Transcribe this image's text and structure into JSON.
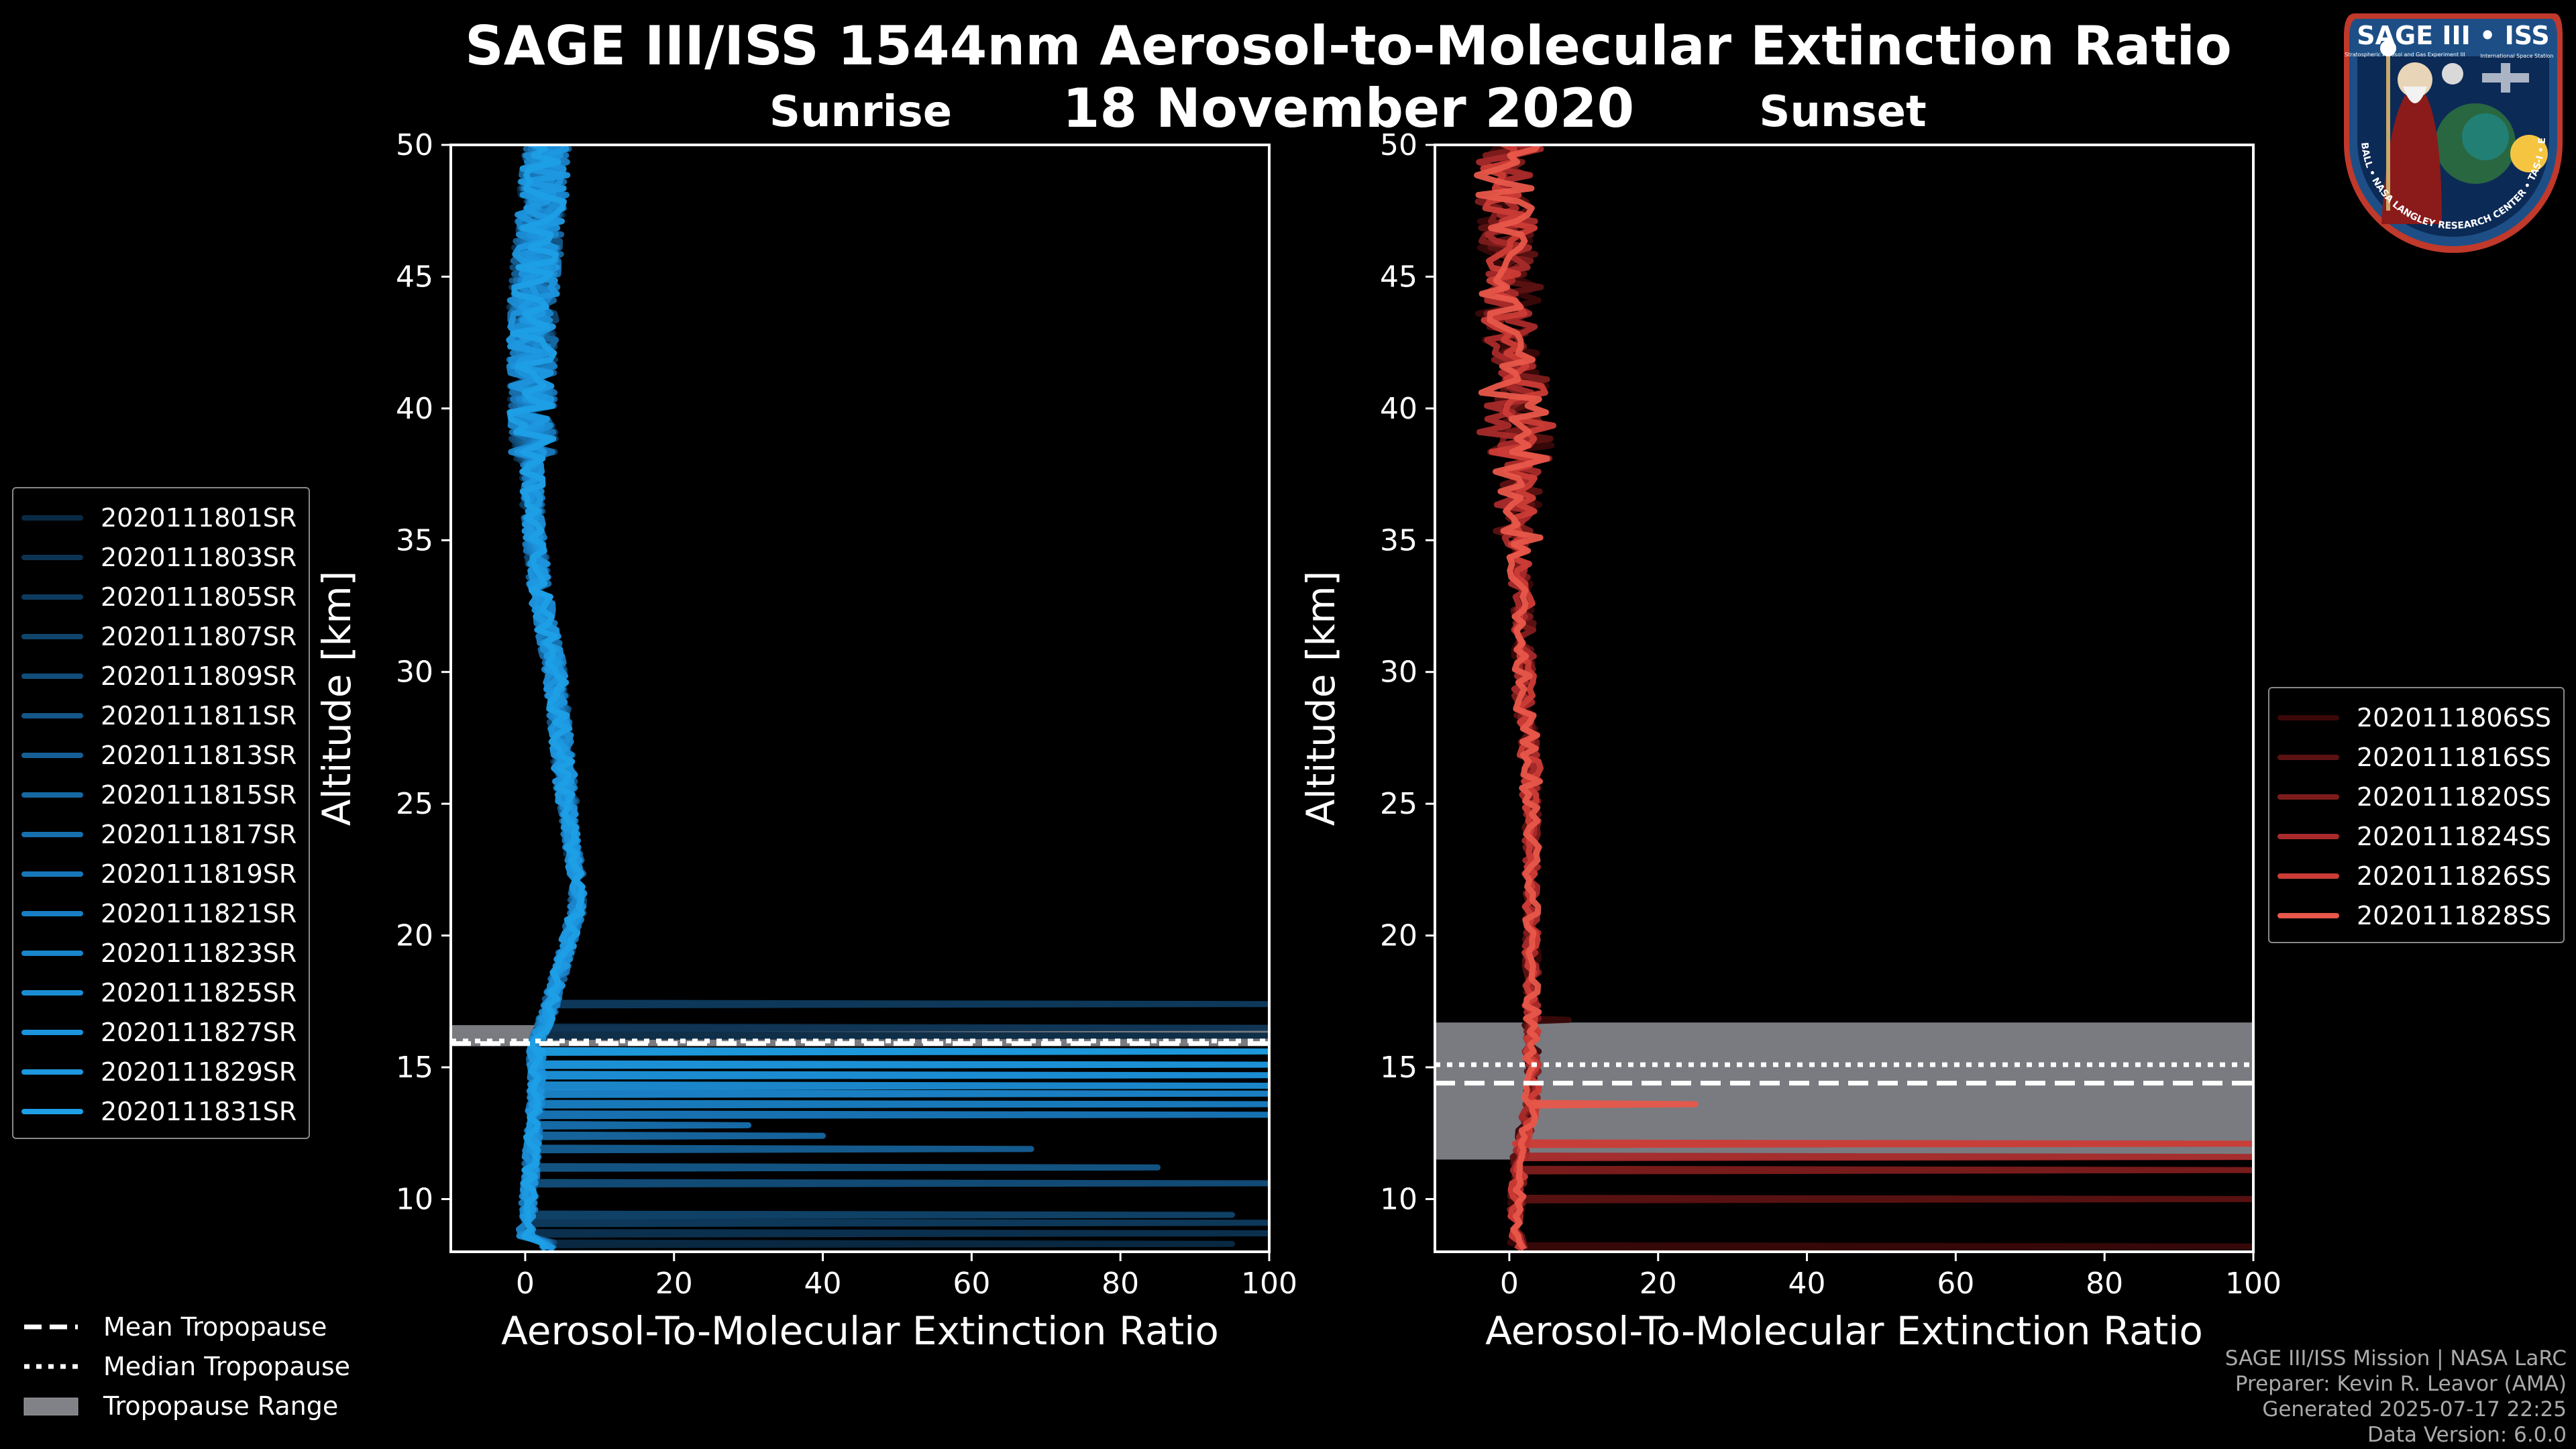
{
  "title": {
    "main": "SAGE III/ISS 1544nm Aerosol-to-Molecular Extinction Ratio",
    "date": "18 November 2020"
  },
  "panels": [
    {
      "id": "sunrise",
      "subtitle": "Sunrise"
    },
    {
      "id": "sunset",
      "subtitle": "Sunset"
    }
  ],
  "chart_data": [
    {
      "type": "line",
      "panel": "Sunrise",
      "title": "Sunrise",
      "xlabel": "Aerosol-To-Molecular Extinction Ratio",
      "ylabel": "Altitude [km]",
      "xlim": [
        -10,
        100
      ],
      "ylim": [
        8,
        50
      ],
      "xticks": [
        0,
        20,
        40,
        60,
        80,
        100
      ],
      "yticks": [
        10,
        15,
        20,
        25,
        30,
        35,
        40,
        45,
        50
      ],
      "series_names": [
        "2020111801SR",
        "2020111803SR",
        "2020111805SR",
        "2020111807SR",
        "2020111809SR",
        "2020111811SR",
        "2020111813SR",
        "2020111815SR",
        "2020111817SR",
        "2020111819SR",
        "2020111821SR",
        "2020111823SR",
        "2020111825SR",
        "2020111827SR",
        "2020111829SR",
        "2020111831SR"
      ],
      "series_colors": [
        "#0a2a44",
        "#0c3352",
        "#0e3b5e",
        "#10456c",
        "#124e7a",
        "#145788",
        "#155f95",
        "#1668a2",
        "#1770ae",
        "#1877ba",
        "#197fc4",
        "#1a86cc",
        "#1b8dd4",
        "#1c93dc",
        "#1d98e0",
        "#1e9fe6"
      ],
      "tropopause": {
        "mean": 15.9,
        "median": 16.0,
        "range": [
          15.8,
          16.6
        ]
      },
      "mean_profile": [
        [
          0,
          8.5
        ],
        [
          0.5,
          10
        ],
        [
          1,
          12
        ],
        [
          1.5,
          14
        ],
        [
          1.5,
          16
        ],
        [
          3,
          17
        ],
        [
          5,
          19
        ],
        [
          7,
          21
        ],
        [
          7,
          22
        ],
        [
          6,
          24
        ],
        [
          5,
          27
        ],
        [
          4,
          30
        ],
        [
          2,
          33
        ],
        [
          1,
          36
        ],
        [
          1,
          40
        ],
        [
          1,
          44
        ],
        [
          2,
          47
        ],
        [
          3,
          50
        ]
      ],
      "excursions": [
        [
          8.3,
          95
        ],
        [
          8.7,
          100
        ],
        [
          9.1,
          100
        ],
        [
          9.4,
          95
        ],
        [
          10.6,
          100
        ],
        [
          11.2,
          85
        ],
        [
          11.9,
          68
        ],
        [
          12.4,
          40
        ],
        [
          12.8,
          30
        ],
        [
          13.2,
          100
        ],
        [
          13.6,
          100
        ],
        [
          14.0,
          100
        ],
        [
          14.3,
          100
        ],
        [
          14.7,
          100
        ],
        [
          15.1,
          100
        ],
        [
          15.6,
          100
        ],
        [
          16.2,
          100
        ],
        [
          16.5,
          100
        ],
        [
          17.4,
          100
        ]
      ]
    },
    {
      "type": "line",
      "panel": "Sunset",
      "title": "Sunset",
      "xlabel": "Aerosol-To-Molecular Extinction Ratio",
      "ylabel": "Altitude [km]",
      "xlim": [
        -10,
        100
      ],
      "ylim": [
        8,
        50
      ],
      "xticks": [
        0,
        20,
        40,
        60,
        80,
        100
      ],
      "yticks": [
        10,
        15,
        20,
        25,
        30,
        35,
        40,
        45,
        50
      ],
      "series_names": [
        "2020111806SS",
        "2020111816SS",
        "2020111820SS",
        "2020111824SS",
        "2020111826SS",
        "2020111828SS"
      ],
      "series_colors": [
        "#3a0808",
        "#5c1212",
        "#7e1c1c",
        "#a82a2a",
        "#cc3c36",
        "#e8574a"
      ],
      "tropopause": {
        "mean": 14.4,
        "median": 15.1,
        "range": [
          11.5,
          16.7
        ]
      },
      "mean_profile": [
        [
          1,
          8.3
        ],
        [
          1,
          10
        ],
        [
          1.5,
          12
        ],
        [
          3,
          13.5
        ],
        [
          3,
          15
        ],
        [
          3,
          17
        ],
        [
          3,
          20
        ],
        [
          3,
          23
        ],
        [
          3,
          26
        ],
        [
          2,
          29
        ],
        [
          2,
          32
        ],
        [
          1,
          35
        ],
        [
          1,
          38
        ],
        [
          1,
          41
        ],
        [
          0,
          44
        ],
        [
          0,
          47
        ],
        [
          0,
          49
        ],
        [
          2,
          50
        ]
      ],
      "excursions": [
        [
          8.2,
          100
        ],
        [
          10.0,
          100
        ],
        [
          11.1,
          100
        ],
        [
          11.6,
          100
        ],
        [
          12.1,
          100
        ],
        [
          13.6,
          25
        ],
        [
          16.8,
          8
        ]
      ]
    }
  ],
  "legend_bottom": [
    {
      "label": "Mean Tropopause",
      "style": "dashed"
    },
    {
      "label": "Median Tropopause",
      "style": "dotted"
    },
    {
      "label": "Tropopause Range",
      "style": "patch"
    }
  ],
  "credits": {
    "line1": "SAGE III/ISS Mission | NASA LaRC",
    "line2": "Preparer: Kevin R. Leavor (AMA)",
    "line3": "Generated 2025-07-17 22:25",
    "line4": "Data Version: 6.0.0"
  },
  "logo": {
    "title": "SAGE III • ISS",
    "ring_text": "BALL • NASA LANGLEY RESEARCH CENTER • TAS-I • ESA",
    "subtitle_small": "Stratospheric Aerosol and Gas Experiment III",
    "subtitle_right": "International Space Station"
  },
  "colors": {
    "background": "#000000",
    "tropo_range": "#808287",
    "axis": "#ffffff"
  }
}
